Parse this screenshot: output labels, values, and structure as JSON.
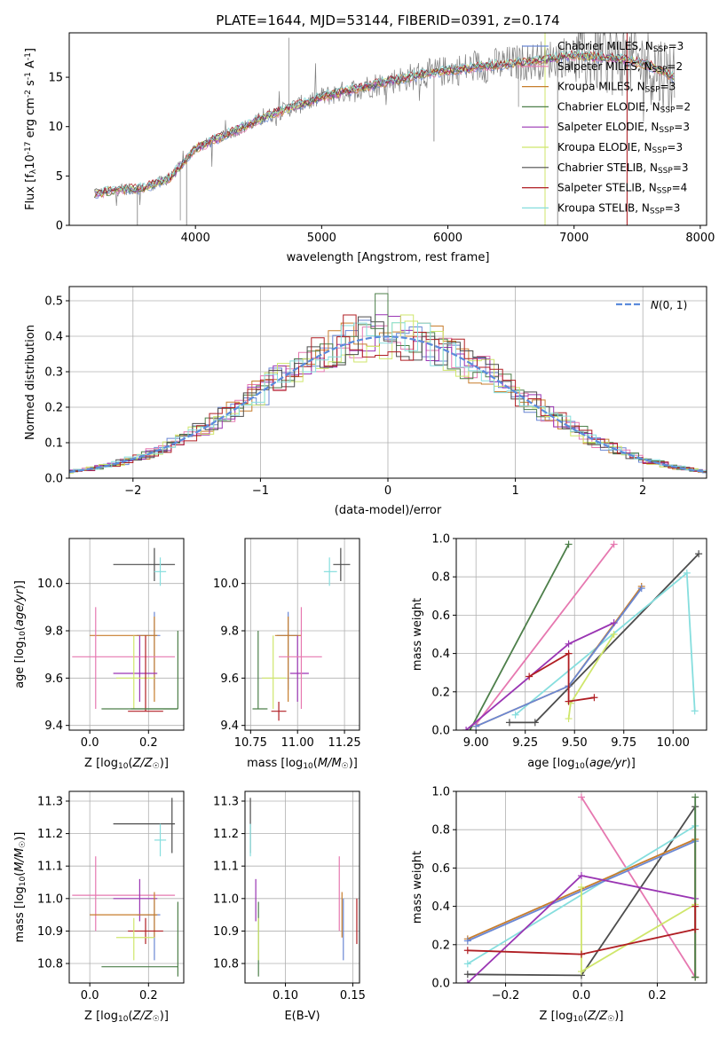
{
  "figure_title": "PLATE=1644, MJD=53144, FIBERID=0391, z=0.174",
  "colors": {
    "chabrier_miles": "#6a87d4",
    "salpeter_miles": "#e678b0",
    "kroupa_miles": "#c77d2c",
    "chabrier_elodie": "#4d7f4a",
    "salpeter_elodie": "#9a35b3",
    "kroupa_elodie": "#cfe66b",
    "chabrier_stelib": "#4d4d4d",
    "salpeter_stelib": "#b01e23",
    "kroupa_stelib": "#86dede",
    "data_grey": "#7f7f7f",
    "normal_curve": "#5b8bdc"
  },
  "chart_data": [
    {
      "id": "spectrum",
      "type": "line",
      "xlabel": "wavelength [Angstrom, rest frame]",
      "ylabel": "Flux [f_λ10^-17 erg cm^-2 s^-1 A^-1]",
      "xlim": [
        3000,
        8050
      ],
      "ylim": [
        0,
        19.5
      ],
      "xticks": [
        4000,
        5000,
        6000,
        7000,
        8000
      ],
      "yticks": [
        0,
        5,
        10,
        15
      ],
      "legend_position": "upper-right",
      "series": [
        {
          "key": "chabrier_miles",
          "label": "Chabrier MILES, N",
          "sub": "SSP",
          "suffix": "=3"
        },
        {
          "key": "salpeter_miles",
          "label": "Salpeter MILES, N",
          "sub": "SSP",
          "suffix": "=2"
        },
        {
          "key": "kroupa_miles",
          "label": "Kroupa MILES, N",
          "sub": "SSP",
          "suffix": "=3"
        },
        {
          "key": "chabrier_elodie",
          "label": "Chabrier ELODIE, N",
          "sub": "SSP",
          "suffix": "=2"
        },
        {
          "key": "salpeter_elodie",
          "label": "Salpeter ELODIE, N",
          "sub": "SSP",
          "suffix": "=3"
        },
        {
          "key": "kroupa_elodie",
          "label": "Kroupa ELODIE, N",
          "sub": "SSP",
          "suffix": "=3"
        },
        {
          "key": "chabrier_stelib",
          "label": "Chabrier STELIB, N",
          "sub": "SSP",
          "suffix": "=3"
        },
        {
          "key": "salpeter_stelib",
          "label": "Salpeter STELIB, N",
          "sub": "SSP",
          "suffix": "=4"
        },
        {
          "key": "kroupa_stelib",
          "label": "Kroupa STELIB, N",
          "sub": "SSP",
          "suffix": "=3"
        }
      ],
      "model_trend": {
        "x": [
          3200,
          3400,
          3600,
          3800,
          4000,
          4300,
          4600,
          5000,
          5400,
          5800,
          6200,
          6600,
          7000,
          7400,
          7600,
          7800
        ],
        "y": [
          3.2,
          3.6,
          3.8,
          4.8,
          7.8,
          9.5,
          11.2,
          13.0,
          14.2,
          15.3,
          16.0,
          16.5,
          17.2,
          16.8,
          16.2,
          15.0
        ]
      }
    },
    {
      "id": "residuals",
      "type": "line",
      "xlabel": "(data-model)/error",
      "ylabel": "Normed distribution",
      "xlim": [
        -2.5,
        2.5
      ],
      "ylim": [
        0,
        0.54
      ],
      "xticks": [
        -2,
        -1,
        0,
        1,
        2
      ],
      "yticks": [
        0.0,
        0.1,
        0.2,
        0.3,
        0.4,
        0.5
      ],
      "legend_position": "upper-right",
      "normal_label": "N(0,1)",
      "peak_bins": [
        {
          "x": -0.05,
          "y": 0.52,
          "key": "chabrier_elodie"
        },
        {
          "x": 0.15,
          "y": 0.46,
          "key": "kroupa_elodie"
        },
        {
          "x": -0.3,
          "y": 0.46,
          "key": "salpeter_stelib"
        }
      ]
    },
    {
      "id": "age_vs_Z",
      "type": "scatter",
      "xlabel": "Z [log10(Z/Z☉)]",
      "ylabel": "age [log10(age/yr)]",
      "xlim": [
        -0.07,
        0.32
      ],
      "ylim": [
        9.38,
        10.19
      ],
      "xticks": [
        0.0,
        0.2
      ],
      "yticks": [
        9.4,
        9.6,
        9.8,
        10.0
      ],
      "points": [
        {
          "key": "chabrier_stelib",
          "x": 0.22,
          "xlo": 0.08,
          "xhi": 0.29,
          "y": 10.08,
          "ylo": 10.01,
          "yhi": 10.15
        },
        {
          "key": "kroupa_stelib",
          "x": 0.24,
          "xlo": 0.22,
          "xhi": 0.26,
          "y": 10.05,
          "ylo": 9.99,
          "yhi": 10.11
        },
        {
          "key": "chabrier_miles",
          "x": 0.22,
          "xlo": 0.16,
          "xhi": 0.24,
          "y": 9.78,
          "ylo": 9.55,
          "yhi": 9.88
        },
        {
          "key": "kroupa_miles",
          "x": 0.22,
          "xlo": 0.0,
          "xhi": 0.23,
          "y": 9.78,
          "ylo": 9.5,
          "yhi": 9.86
        },
        {
          "key": "salpeter_elodie",
          "x": 0.17,
          "xlo": 0.08,
          "xhi": 0.23,
          "y": 9.62,
          "ylo": 9.5,
          "yhi": 9.78
        },
        {
          "key": "salpeter_miles",
          "x": 0.02,
          "xlo": -0.06,
          "xhi": 0.29,
          "y": 9.69,
          "ylo": 9.47,
          "yhi": 9.9
        },
        {
          "key": "kroupa_elodie",
          "x": 0.15,
          "xlo": 0.09,
          "xhi": 0.22,
          "y": 9.6,
          "ylo": 9.47,
          "yhi": 9.78
        },
        {
          "key": "chabrier_elodie",
          "x": 0.3,
          "xlo": 0.04,
          "xhi": 0.3,
          "y": 9.47,
          "ylo": 9.47,
          "yhi": 9.8
        },
        {
          "key": "salpeter_stelib",
          "x": 0.19,
          "xlo": 0.13,
          "xhi": 0.25,
          "y": 9.46,
          "ylo": 9.46,
          "yhi": 9.78
        },
        {
          "key": "chabrier_elodie",
          "x": 0.14,
          "xlo": 0.14,
          "xhi": 0.3,
          "y": 9.47,
          "ylo": 9.47,
          "yhi": 9.47
        }
      ]
    },
    {
      "id": "age_vs_mass",
      "type": "scatter",
      "xlabel": "mass [log10(M/M☉)]",
      "ylabel": "",
      "xlim": [
        10.72,
        11.33
      ],
      "ylim": [
        9.38,
        10.19
      ],
      "xticks": [
        10.75,
        11.0,
        11.25
      ],
      "yticks": [
        9.4,
        9.6,
        9.8,
        10.0
      ],
      "points": [
        {
          "key": "chabrier_stelib",
          "x": 11.23,
          "xlo": 11.19,
          "xhi": 11.28,
          "y": 10.08,
          "ylo": 10.01,
          "yhi": 10.15
        },
        {
          "key": "kroupa_stelib",
          "x": 11.17,
          "xlo": 11.14,
          "xhi": 11.21,
          "y": 10.05,
          "ylo": 9.99,
          "yhi": 10.11
        },
        {
          "key": "chabrier_miles",
          "x": 10.95,
          "xlo": 10.89,
          "xhi": 11.0,
          "y": 9.78,
          "ylo": 9.55,
          "yhi": 9.88
        },
        {
          "key": "kroupa_miles",
          "x": 10.95,
          "xlo": 10.88,
          "xhi": 11.02,
          "y": 9.78,
          "ylo": 9.5,
          "yhi": 9.86
        },
        {
          "key": "salpeter_elodie",
          "x": 11.0,
          "xlo": 10.96,
          "xhi": 11.06,
          "y": 9.62,
          "ylo": 9.5,
          "yhi": 9.78
        },
        {
          "key": "salpeter_miles",
          "x": 11.02,
          "xlo": 10.9,
          "xhi": 11.13,
          "y": 9.69,
          "ylo": 9.47,
          "yhi": 9.9
        },
        {
          "key": "kroupa_elodie",
          "x": 10.87,
          "xlo": 10.81,
          "xhi": 10.94,
          "y": 9.6,
          "ylo": 9.47,
          "yhi": 9.78
        },
        {
          "key": "chabrier_elodie",
          "x": 10.79,
          "xlo": 10.76,
          "xhi": 10.84,
          "y": 9.47,
          "ylo": 9.47,
          "yhi": 9.8
        },
        {
          "key": "salpeter_stelib",
          "x": 10.9,
          "xlo": 10.86,
          "xhi": 10.94,
          "y": 9.46,
          "ylo": 9.42,
          "yhi": 9.5
        }
      ]
    },
    {
      "id": "weight_vs_age",
      "type": "line",
      "xlabel": "age [log10(age/yr)]",
      "ylabel": "mass weight",
      "xlim": [
        8.9,
        10.17
      ],
      "ylim": [
        0,
        1
      ],
      "xticks": [
        9.0,
        9.25,
        9.5,
        9.75,
        10.0
      ],
      "yticks": [
        0.0,
        0.2,
        0.4,
        0.6,
        0.8,
        1.0
      ],
      "series": [
        {
          "key": "chabrier_elodie",
          "x": [
            8.97,
            9.47
          ],
          "y": [
            0.0,
            0.97
          ]
        },
        {
          "key": "salpeter_miles",
          "x": [
            9.0,
            9.7
          ],
          "y": [
            0.03,
            0.97
          ]
        },
        {
          "key": "chabrier_stelib",
          "x": [
            9.17,
            9.3,
            10.13
          ],
          "y": [
            0.04,
            0.04,
            0.92
          ]
        },
        {
          "key": "kroupa_stelib",
          "x": [
            9.2,
            10.07,
            10.11
          ],
          "y": [
            0.08,
            0.82,
            0.1
          ]
        },
        {
          "key": "kroupa_miles",
          "x": [
            9.0,
            9.47,
            9.84
          ],
          "y": [
            0.02,
            0.23,
            0.75
          ]
        },
        {
          "key": "chabrier_miles",
          "x": [
            9.0,
            9.47,
            9.84
          ],
          "y": [
            0.02,
            0.23,
            0.74
          ]
        },
        {
          "key": "salpeter_elodie",
          "x": [
            8.95,
            9.47,
            9.7
          ],
          "y": [
            0.0,
            0.45,
            0.56
          ]
        },
        {
          "key": "kroupa_elodie",
          "x": [
            9.47,
            9.48,
            9.7
          ],
          "y": [
            0.06,
            0.14,
            0.5
          ]
        },
        {
          "key": "salpeter_stelib",
          "x": [
            9.27,
            9.47,
            9.47,
            9.6
          ],
          "y": [
            0.28,
            0.4,
            0.15,
            0.17
          ]
        }
      ]
    },
    {
      "id": "mass_vs_Z",
      "type": "scatter",
      "xlabel": "Z [log10(Z/Z☉)]",
      "ylabel": "mass [log10(M/M☉)]",
      "xlim": [
        -0.07,
        0.32
      ],
      "ylim": [
        10.74,
        11.33
      ],
      "xticks": [
        0.0,
        0.2
      ],
      "yticks": [
        10.8,
        10.9,
        11.0,
        11.1,
        11.2,
        11.3
      ],
      "points": [
        {
          "key": "chabrier_stelib",
          "x": 0.28,
          "xlo": 0.08,
          "xhi": 0.29,
          "y": 11.23,
          "ylo": 11.14,
          "yhi": 11.31
        },
        {
          "key": "kroupa_stelib",
          "x": 0.24,
          "xlo": 0.22,
          "xhi": 0.26,
          "y": 11.18,
          "ylo": 11.13,
          "yhi": 11.23
        },
        {
          "key": "salpeter_miles",
          "x": 0.02,
          "xlo": -0.06,
          "xhi": 0.29,
          "y": 11.01,
          "ylo": 10.9,
          "yhi": 11.13
        },
        {
          "key": "salpeter_elodie",
          "x": 0.17,
          "xlo": 0.08,
          "xhi": 0.23,
          "y": 11.0,
          "ylo": 10.93,
          "yhi": 11.06
        },
        {
          "key": "chabrier_miles",
          "x": 0.22,
          "xlo": 0.16,
          "xhi": 0.24,
          "y": 10.95,
          "ylo": 10.81,
          "yhi": 11.0
        },
        {
          "key": "kroupa_miles",
          "x": 0.22,
          "xlo": 0.0,
          "xhi": 0.23,
          "y": 10.95,
          "ylo": 10.88,
          "yhi": 11.02
        },
        {
          "key": "salpeter_stelib",
          "x": 0.19,
          "xlo": 0.13,
          "xhi": 0.25,
          "y": 10.9,
          "ylo": 10.86,
          "yhi": 10.94
        },
        {
          "key": "kroupa_elodie",
          "x": 0.15,
          "xlo": 0.09,
          "xhi": 0.22,
          "y": 10.88,
          "ylo": 10.81,
          "yhi": 10.94
        },
        {
          "key": "chabrier_elodie",
          "x": 0.3,
          "xlo": 0.04,
          "xhi": 0.3,
          "y": 10.79,
          "ylo": 10.76,
          "yhi": 10.99
        }
      ]
    },
    {
      "id": "mass_vs_ebv",
      "type": "scatter",
      "xlabel": "E(B-V)",
      "ylabel": "",
      "xlim": [
        0.07,
        0.155
      ],
      "ylim": [
        10.74,
        11.33
      ],
      "xticks": [
        0.1,
        0.15
      ],
      "yticks": [
        10.8,
        10.9,
        11.0,
        11.1,
        11.2,
        11.3
      ],
      "points": [
        {
          "key": "chabrier_stelib",
          "x": 0.074,
          "ylo": 11.14,
          "yhi": 11.31
        },
        {
          "key": "kroupa_stelib",
          "x": 0.074,
          "ylo": 11.13,
          "yhi": 11.23
        },
        {
          "key": "salpeter_elodie",
          "x": 0.078,
          "ylo": 10.93,
          "yhi": 11.06
        },
        {
          "key": "chabrier_elodie",
          "x": 0.08,
          "ylo": 10.76,
          "yhi": 10.99
        },
        {
          "key": "kroupa_elodie",
          "x": 0.08,
          "ylo": 10.81,
          "yhi": 10.94
        },
        {
          "key": "salpeter_miles",
          "x": 0.14,
          "ylo": 10.9,
          "yhi": 11.13
        },
        {
          "key": "kroupa_miles",
          "x": 0.142,
          "ylo": 10.88,
          "yhi": 11.02
        },
        {
          "key": "chabrier_miles",
          "x": 0.143,
          "ylo": 10.81,
          "yhi": 11.0
        },
        {
          "key": "salpeter_stelib",
          "x": 0.153,
          "ylo": 10.86,
          "yhi": 11.0
        }
      ]
    },
    {
      "id": "weight_vs_Z",
      "type": "line",
      "xlabel": "Z [log10(Z/Z☉)]",
      "ylabel": "mass weight",
      "xlim": [
        -0.33,
        0.33
      ],
      "ylim": [
        0,
        1
      ],
      "xticks": [
        -0.2,
        0.0,
        0.2
      ],
      "yticks": [
        0.0,
        0.2,
        0.4,
        0.6,
        0.8,
        1.0
      ],
      "series": [
        {
          "key": "salpeter_miles",
          "x": [
            0.0,
            0.3
          ],
          "y": [
            0.97,
            0.03
          ]
        },
        {
          "key": "chabrier_stelib",
          "x": [
            -0.3,
            0.0,
            0.3,
            0.3
          ],
          "y": [
            0.045,
            0.04,
            0.92,
            0.03
          ]
        },
        {
          "key": "kroupa_stelib",
          "x": [
            -0.3,
            0.3
          ],
          "y": [
            0.1,
            0.82
          ]
        },
        {
          "key": "kroupa_miles",
          "x": [
            -0.3,
            0.3,
            0.3
          ],
          "y": [
            0.23,
            0.75,
            0.03
          ]
        },
        {
          "key": "chabrier_miles",
          "x": [
            -0.3,
            0.3
          ],
          "y": [
            0.22,
            0.74
          ]
        },
        {
          "key": "salpeter_elodie",
          "x": [
            -0.3,
            0.0,
            0.3
          ],
          "y": [
            0.0,
            0.56,
            0.44
          ]
        },
        {
          "key": "kroupa_elodie",
          "x": [
            0.0,
            0.0,
            0.3
          ],
          "y": [
            0.5,
            0.06,
            0.41
          ]
        },
        {
          "key": "chabrier_elodie",
          "x": [
            0.3,
            0.3
          ],
          "y": [
            0.97,
            0.03
          ]
        },
        {
          "key": "salpeter_stelib",
          "x": [
            -0.3,
            0.0,
            0.3,
            0.3
          ],
          "y": [
            0.17,
            0.15,
            0.28,
            0.4
          ]
        }
      ]
    }
  ]
}
